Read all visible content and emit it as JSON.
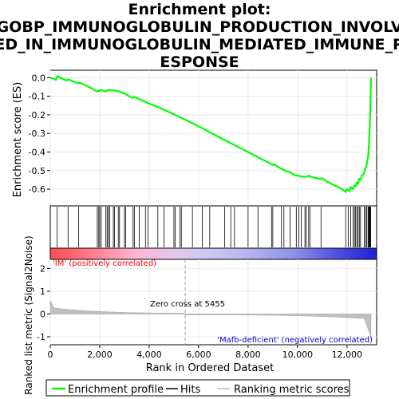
{
  "chart_data": {
    "type": "line",
    "title_lines": [
      "Enrichment plot:",
      "GOBP_IMMUNOGLOBULIN_PRODUCTION_INVOLV",
      "ED_IN_IMMUNOGLOBULIN_MEDIATED_IMMUNE_R",
      "ESPONSE"
    ],
    "ylabel_top": "Enrichment score (ES)",
    "ylabel_bottom": "Ranked list metric (Signal2Noise)",
    "xlabel": "Rank in Ordered Dataset",
    "xlim": [
      0,
      13200
    ],
    "x_ticks": [
      0,
      2000,
      4000,
      6000,
      8000,
      10000,
      12000
    ],
    "x_tick_labels": [
      "0",
      "2,000",
      "4,000",
      "6,000",
      "8,000",
      "10,000",
      "12,000"
    ],
    "es_ylim": [
      -0.69,
      0.04
    ],
    "es_ticks": [
      0.0,
      -0.1,
      -0.2,
      -0.3,
      -0.4,
      -0.5,
      -0.6
    ],
    "es_tick_labels": [
      "0.0",
      "-0.1",
      "-0.2",
      "-0.3",
      "-0.4",
      "-0.5",
      "-0.6"
    ],
    "metric_ylim": [
      -1.35,
      2.4
    ],
    "metric_ticks": [
      2,
      1,
      0,
      -1
    ],
    "metric_tick_labels": [
      "2",
      "1",
      "0",
      "-1"
    ],
    "series": [
      {
        "name": "Enrichment profile",
        "color": "#00ff00",
        "points": [
          [
            0,
            0.0
          ],
          [
            120,
            -0.005
          ],
          [
            230,
            -0.012
          ],
          [
            280,
            0.008
          ],
          [
            450,
            -0.003
          ],
          [
            650,
            -0.015
          ],
          [
            720,
            -0.01
          ],
          [
            780,
            -0.012
          ],
          [
            1100,
            -0.03
          ],
          [
            1200,
            -0.028
          ],
          [
            1500,
            -0.045
          ],
          [
            1700,
            -0.06
          ],
          [
            1900,
            -0.075
          ],
          [
            1950,
            -0.07
          ],
          [
            2000,
            -0.072
          ],
          [
            2050,
            -0.065
          ],
          [
            2250,
            -0.075
          ],
          [
            2300,
            -0.068
          ],
          [
            2400,
            -0.065
          ],
          [
            2550,
            -0.07
          ],
          [
            2600,
            -0.068
          ],
          [
            2700,
            -0.072
          ],
          [
            2800,
            -0.075
          ],
          [
            3000,
            -0.085
          ],
          [
            3300,
            -0.108
          ],
          [
            3400,
            -0.105
          ],
          [
            3600,
            -0.115
          ],
          [
            3800,
            -0.128
          ],
          [
            4000,
            -0.14
          ],
          [
            4400,
            -0.16
          ],
          [
            4800,
            -0.185
          ],
          [
            5200,
            -0.21
          ],
          [
            5600,
            -0.235
          ],
          [
            6000,
            -0.262
          ],
          [
            6400,
            -0.29
          ],
          [
            6800,
            -0.318
          ],
          [
            7200,
            -0.346
          ],
          [
            7600,
            -0.373
          ],
          [
            8000,
            -0.4
          ],
          [
            8400,
            -0.428
          ],
          [
            8800,
            -0.455
          ],
          [
            9000,
            -0.47
          ],
          [
            9050,
            -0.465
          ],
          [
            9200,
            -0.48
          ],
          [
            9500,
            -0.5
          ],
          [
            9700,
            -0.51
          ],
          [
            9900,
            -0.525
          ],
          [
            10100,
            -0.53
          ],
          [
            10300,
            -0.535
          ],
          [
            10450,
            -0.528
          ],
          [
            10600,
            -0.535
          ],
          [
            10900,
            -0.545
          ],
          [
            11000,
            -0.542
          ],
          [
            11200,
            -0.56
          ],
          [
            11500,
            -0.58
          ],
          [
            11800,
            -0.6
          ],
          [
            11950,
            -0.615
          ],
          [
            12000,
            -0.6
          ],
          [
            12100,
            -0.61
          ],
          [
            12150,
            -0.59
          ],
          [
            12250,
            -0.6
          ],
          [
            12300,
            -0.58
          ],
          [
            12350,
            -0.585
          ],
          [
            12400,
            -0.565
          ],
          [
            12450,
            -0.57
          ],
          [
            12500,
            -0.545
          ],
          [
            12550,
            -0.55
          ],
          [
            12600,
            -0.525
          ],
          [
            12680,
            -0.52
          ],
          [
            12720,
            -0.495
          ],
          [
            12780,
            -0.48
          ],
          [
            12820,
            -0.45
          ],
          [
            12860,
            -0.42
          ],
          [
            12880,
            -0.38
          ],
          [
            12900,
            -0.33
          ],
          [
            12920,
            -0.27
          ],
          [
            12940,
            -0.2
          ],
          [
            12950,
            -0.13
          ],
          [
            12960,
            -0.06
          ],
          [
            12970,
            0.0
          ]
        ]
      }
    ],
    "hits": [
      280,
      720,
      1150,
      1900,
      1960,
      2000,
      2060,
      2250,
      2300,
      2350,
      2400,
      2550,
      2600,
      2750,
      2800,
      3000,
      3050,
      3350,
      3400,
      3600,
      3850,
      3950,
      4350,
      4600,
      5000,
      5050,
      5250,
      5300,
      5750,
      6150,
      6450,
      7050,
      7300,
      7450,
      8000,
      8400,
      8950,
      9000,
      9350,
      9450,
      9700,
      9950,
      10050,
      10150,
      10300,
      10350,
      10450,
      10500,
      10950,
      11950,
      12050,
      12150,
      12250,
      12300,
      12350,
      12400,
      12450,
      12500,
      12550,
      12700,
      12750,
      12800,
      12850,
      12880,
      12900,
      12920,
      12940,
      12960
    ],
    "zero_cross_rank": 5455,
    "zero_cross_label": "Zero cross at 5455",
    "pos_label": "'IM' (positively correlated)",
    "neg_label": "'Mafb-deficient' (negatively correlated)",
    "legend": [
      {
        "label": "Enrichment profile",
        "color": "#00ff00"
      },
      {
        "label": "Hits",
        "color": "#000000"
      },
      {
        "label": "Ranking metric scores",
        "color": "#c0c0c0"
      }
    ],
    "colors": {
      "es_line": "#00ff00",
      "hits": "#000000",
      "metric": "#c0c0c0",
      "grid": "#e8e8e8",
      "pos_text": "#ff0000",
      "neg_text": "#0000cc",
      "bar_stops": [
        "#ff4d4d",
        "#ff7a8a",
        "#ffb3d0",
        "#e6c8ef",
        "#c8c8f5",
        "#b0b0f0",
        "#8f8fe8",
        "#5050e0",
        "#2020d8"
      ]
    }
  }
}
